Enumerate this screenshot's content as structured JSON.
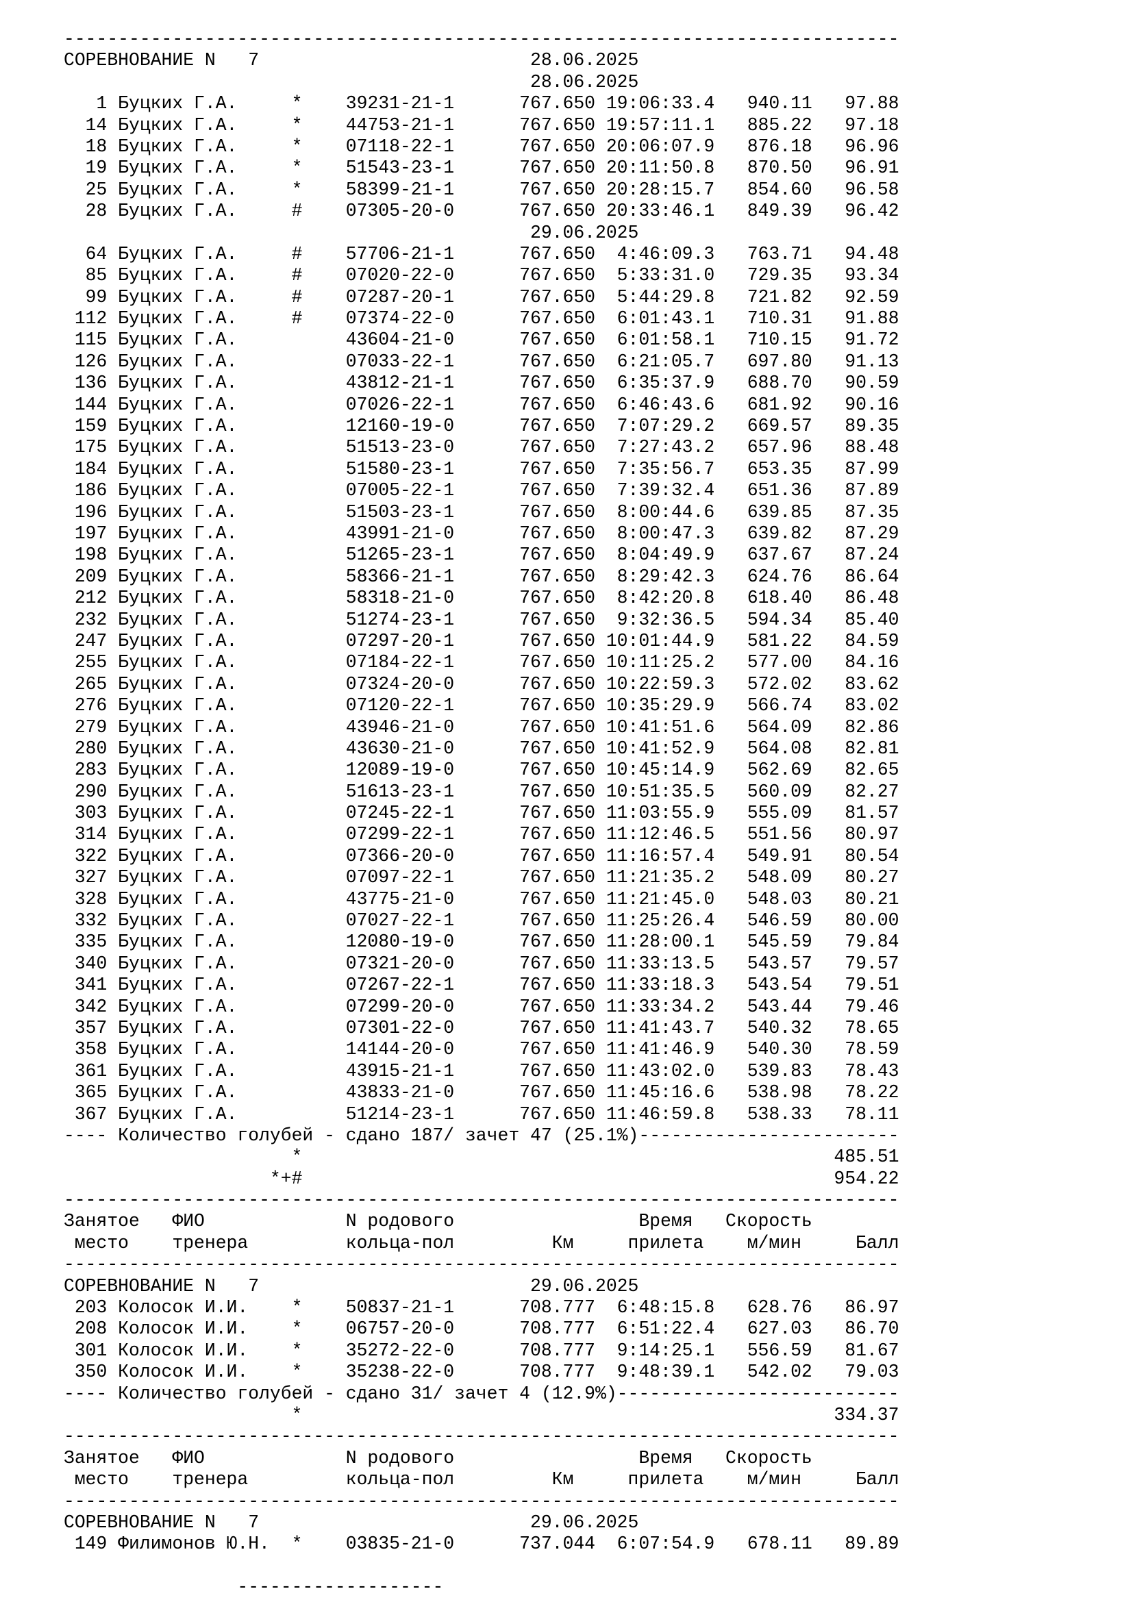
{
  "page": {
    "background": "#ffffff",
    "text_color": "#000000"
  },
  "labels": {
    "competition": "СОРЕВНОВАНИЕ N",
    "header_line1": {
      "place": "Занятое",
      "fio": "ФИО",
      "ring": "N родового",
      "time": "Время",
      "speed": "Скорость"
    },
    "header_line2": {
      "place": "место",
      "fio": "тренера",
      "ring": "кольца-пол",
      "km": "Км",
      "time": "прилета",
      "speed": "м/мин",
      "ball": "Балл"
    }
  },
  "strings": {
    "separator": "-----------------------------------------------------------------------------",
    "partial_bottom_line": "                -------------------"
  },
  "sections": [
    {
      "pre": "separator",
      "competition_number": "7",
      "date": "28.06.2025",
      "trainer": "Буцких Г.А.",
      "groups": [
        {
          "date": "28.06.2025",
          "rows": [
            {
              "place": "1",
              "marker": "*",
              "ring": "39231-21-1",
              "km": "767.650",
              "time": "19:06:33.4",
              "speed": "940.11",
              "points": "97.88"
            },
            {
              "place": "14",
              "marker": "*",
              "ring": "44753-21-1",
              "km": "767.650",
              "time": "19:57:11.1",
              "speed": "885.22",
              "points": "97.18"
            },
            {
              "place": "18",
              "marker": "*",
              "ring": "07118-22-1",
              "km": "767.650",
              "time": "20:06:07.9",
              "speed": "876.18",
              "points": "96.96"
            },
            {
              "place": "19",
              "marker": "*",
              "ring": "51543-23-1",
              "km": "767.650",
              "time": "20:11:50.8",
              "speed": "870.50",
              "points": "96.91"
            },
            {
              "place": "25",
              "marker": "*",
              "ring": "58399-21-1",
              "km": "767.650",
              "time": "20:28:15.7",
              "speed": "854.60",
              "points": "96.58"
            },
            {
              "place": "28",
              "marker": "#",
              "ring": "07305-20-0",
              "km": "767.650",
              "time": "20:33:46.1",
              "speed": "849.39",
              "points": "96.42"
            }
          ]
        },
        {
          "date": "29.06.2025",
          "rows": [
            {
              "place": "64",
              "marker": "#",
              "ring": "57706-21-1",
              "km": "767.650",
              "time": "4:46:09.3",
              "speed": "763.71",
              "points": "94.48"
            },
            {
              "place": "85",
              "marker": "#",
              "ring": "07020-22-0",
              "km": "767.650",
              "time": "5:33:31.0",
              "speed": "729.35",
              "points": "93.34"
            },
            {
              "place": "99",
              "marker": "#",
              "ring": "07287-20-1",
              "km": "767.650",
              "time": "5:44:29.8",
              "speed": "721.82",
              "points": "92.59"
            },
            {
              "place": "112",
              "marker": "#",
              "ring": "07374-22-0",
              "km": "767.650",
              "time": "6:01:43.1",
              "speed": "710.31",
              "points": "91.88"
            },
            {
              "place": "115",
              "marker": "",
              "ring": "43604-21-0",
              "km": "767.650",
              "time": "6:01:58.1",
              "speed": "710.15",
              "points": "91.72"
            },
            {
              "place": "126",
              "marker": "",
              "ring": "07033-22-1",
              "km": "767.650",
              "time": "6:21:05.7",
              "speed": "697.80",
              "points": "91.13"
            },
            {
              "place": "136",
              "marker": "",
              "ring": "43812-21-1",
              "km": "767.650",
              "time": "6:35:37.9",
              "speed": "688.70",
              "points": "90.59"
            },
            {
              "place": "144",
              "marker": "",
              "ring": "07026-22-1",
              "km": "767.650",
              "time": "6:46:43.6",
              "speed": "681.92",
              "points": "90.16"
            },
            {
              "place": "159",
              "marker": "",
              "ring": "12160-19-0",
              "km": "767.650",
              "time": "7:07:29.2",
              "speed": "669.57",
              "points": "89.35"
            },
            {
              "place": "175",
              "marker": "",
              "ring": "51513-23-0",
              "km": "767.650",
              "time": "7:27:43.2",
              "speed": "657.96",
              "points": "88.48"
            },
            {
              "place": "184",
              "marker": "",
              "ring": "51580-23-1",
              "km": "767.650",
              "time": "7:35:56.7",
              "speed": "653.35",
              "points": "87.99"
            },
            {
              "place": "186",
              "marker": "",
              "ring": "07005-22-1",
              "km": "767.650",
              "time": "7:39:32.4",
              "speed": "651.36",
              "points": "87.89"
            },
            {
              "place": "196",
              "marker": "",
              "ring": "51503-23-1",
              "km": "767.650",
              "time": "8:00:44.6",
              "speed": "639.85",
              "points": "87.35"
            },
            {
              "place": "197",
              "marker": "",
              "ring": "43991-21-0",
              "km": "767.650",
              "time": "8:00:47.3",
              "speed": "639.82",
              "points": "87.29"
            },
            {
              "place": "198",
              "marker": "",
              "ring": "51265-23-1",
              "km": "767.650",
              "time": "8:04:49.9",
              "speed": "637.67",
              "points": "87.24"
            },
            {
              "place": "209",
              "marker": "",
              "ring": "58366-21-1",
              "km": "767.650",
              "time": "8:29:42.3",
              "speed": "624.76",
              "points": "86.64"
            },
            {
              "place": "212",
              "marker": "",
              "ring": "58318-21-0",
              "km": "767.650",
              "time": "8:42:20.8",
              "speed": "618.40",
              "points": "86.48"
            },
            {
              "place": "232",
              "marker": "",
              "ring": "51274-23-1",
              "km": "767.650",
              "time": "9:32:36.5",
              "speed": "594.34",
              "points": "85.40"
            },
            {
              "place": "247",
              "marker": "",
              "ring": "07297-20-1",
              "km": "767.650",
              "time": "10:01:44.9",
              "speed": "581.22",
              "points": "84.59"
            },
            {
              "place": "255",
              "marker": "",
              "ring": "07184-22-1",
              "km": "767.650",
              "time": "10:11:25.2",
              "speed": "577.00",
              "points": "84.16"
            },
            {
              "place": "265",
              "marker": "",
              "ring": "07324-20-0",
              "km": "767.650",
              "time": "10:22:59.3",
              "speed": "572.02",
              "points": "83.62"
            },
            {
              "place": "276",
              "marker": "",
              "ring": "07120-22-1",
              "km": "767.650",
              "time": "10:35:29.9",
              "speed": "566.74",
              "points": "83.02"
            },
            {
              "place": "279",
              "marker": "",
              "ring": "43946-21-0",
              "km": "767.650",
              "time": "10:41:51.6",
              "speed": "564.09",
              "points": "82.86"
            },
            {
              "place": "280",
              "marker": "",
              "ring": "43630-21-0",
              "km": "767.650",
              "time": "10:41:52.9",
              "speed": "564.08",
              "points": "82.81"
            },
            {
              "place": "283",
              "marker": "",
              "ring": "12089-19-0",
              "km": "767.650",
              "time": "10:45:14.9",
              "speed": "562.69",
              "points": "82.65"
            },
            {
              "place": "290",
              "marker": "",
              "ring": "51613-23-1",
              "km": "767.650",
              "time": "10:51:35.5",
              "speed": "560.09",
              "points": "82.27"
            },
            {
              "place": "303",
              "marker": "",
              "ring": "07245-22-1",
              "km": "767.650",
              "time": "11:03:55.9",
              "speed": "555.09",
              "points": "81.57"
            },
            {
              "place": "314",
              "marker": "",
              "ring": "07299-22-1",
              "km": "767.650",
              "time": "11:12:46.5",
              "speed": "551.56",
              "points": "80.97"
            },
            {
              "place": "322",
              "marker": "",
              "ring": "07366-20-0",
              "km": "767.650",
              "time": "11:16:57.4",
              "speed": "549.91",
              "points": "80.54"
            },
            {
              "place": "327",
              "marker": "",
              "ring": "07097-22-1",
              "km": "767.650",
              "time": "11:21:35.2",
              "speed": "548.09",
              "points": "80.27"
            },
            {
              "place": "328",
              "marker": "",
              "ring": "43775-21-0",
              "km": "767.650",
              "time": "11:21:45.0",
              "speed": "548.03",
              "points": "80.21"
            },
            {
              "place": "332",
              "marker": "",
              "ring": "07027-22-1",
              "km": "767.650",
              "time": "11:25:26.4",
              "speed": "546.59",
              "points": "80.00"
            },
            {
              "place": "335",
              "marker": "",
              "ring": "12080-19-0",
              "km": "767.650",
              "time": "11:28:00.1",
              "speed": "545.59",
              "points": "79.84"
            },
            {
              "place": "340",
              "marker": "",
              "ring": "07321-20-0",
              "km": "767.650",
              "time": "11:33:13.5",
              "speed": "543.57",
              "points": "79.57"
            },
            {
              "place": "341",
              "marker": "",
              "ring": "07267-22-1",
              "km": "767.650",
              "time": "11:33:18.3",
              "speed": "543.54",
              "points": "79.51"
            },
            {
              "place": "342",
              "marker": "",
              "ring": "07299-20-0",
              "km": "767.650",
              "time": "11:33:34.2",
              "speed": "543.44",
              "points": "79.46"
            },
            {
              "place": "357",
              "marker": "",
              "ring": "07301-22-0",
              "km": "767.650",
              "time": "11:41:43.7",
              "speed": "540.32",
              "points": "78.65"
            },
            {
              "place": "358",
              "marker": "",
              "ring": "14144-20-0",
              "km": "767.650",
              "time": "11:41:46.9",
              "speed": "540.30",
              "points": "78.59"
            },
            {
              "place": "361",
              "marker": "",
              "ring": "43915-21-1",
              "km": "767.650",
              "time": "11:43:02.0",
              "speed": "539.83",
              "points": "78.43"
            },
            {
              "place": "365",
              "marker": "",
              "ring": "43833-21-0",
              "km": "767.650",
              "time": "11:45:16.6",
              "speed": "538.98",
              "points": "78.22"
            },
            {
              "place": "367",
              "marker": "",
              "ring": "51214-23-1",
              "km": "767.650",
              "time": "11:46:59.8",
              "speed": "538.33",
              "points": "78.11"
            }
          ]
        }
      ],
      "summary_line": "---- Количество голубей - сдано 187/ зачет 47 (25.1%)------------------------",
      "totals": [
        {
          "marker": "*",
          "value": "485.51"
        },
        {
          "marker": "*+#",
          "value": "954.22"
        }
      ]
    },
    {
      "pre": "column-header",
      "competition_number": "7",
      "date": "29.06.2025",
      "trainer": "Колосок И.И.",
      "groups": [
        {
          "date": null,
          "rows": [
            {
              "place": "203",
              "marker": "*",
              "ring": "50837-21-1",
              "km": "708.777",
              "time": "6:48:15.8",
              "speed": "628.76",
              "points": "86.97"
            },
            {
              "place": "208",
              "marker": "*",
              "ring": "06757-20-0",
              "km": "708.777",
              "time": "6:51:22.4",
              "speed": "627.03",
              "points": "86.70"
            },
            {
              "place": "301",
              "marker": "*",
              "ring": "35272-22-0",
              "km": "708.777",
              "time": "9:14:25.1",
              "speed": "556.59",
              "points": "81.67"
            },
            {
              "place": "350",
              "marker": "*",
              "ring": "35238-22-0",
              "km": "708.777",
              "time": "9:48:39.1",
              "speed": "542.02",
              "points": "79.03"
            }
          ]
        }
      ],
      "summary_line": "---- Количество голубей - сдано 31/ зачет 4 (12.9%)--------------------------",
      "totals": [
        {
          "marker": "*",
          "value": "334.37"
        }
      ]
    },
    {
      "pre": "column-header",
      "competition_number": "7",
      "date": "29.06.2025",
      "trainer": "Филимонов Ю.Н.",
      "groups": [
        {
          "date": null,
          "rows": [
            {
              "place": "149",
              "marker": "*",
              "ring": "03835-21-0",
              "km": "737.044",
              "time": "6:07:54.9",
              "speed": "678.11",
              "points": "89.89"
            }
          ]
        }
      ],
      "summary_line": null,
      "totals": []
    }
  ]
}
